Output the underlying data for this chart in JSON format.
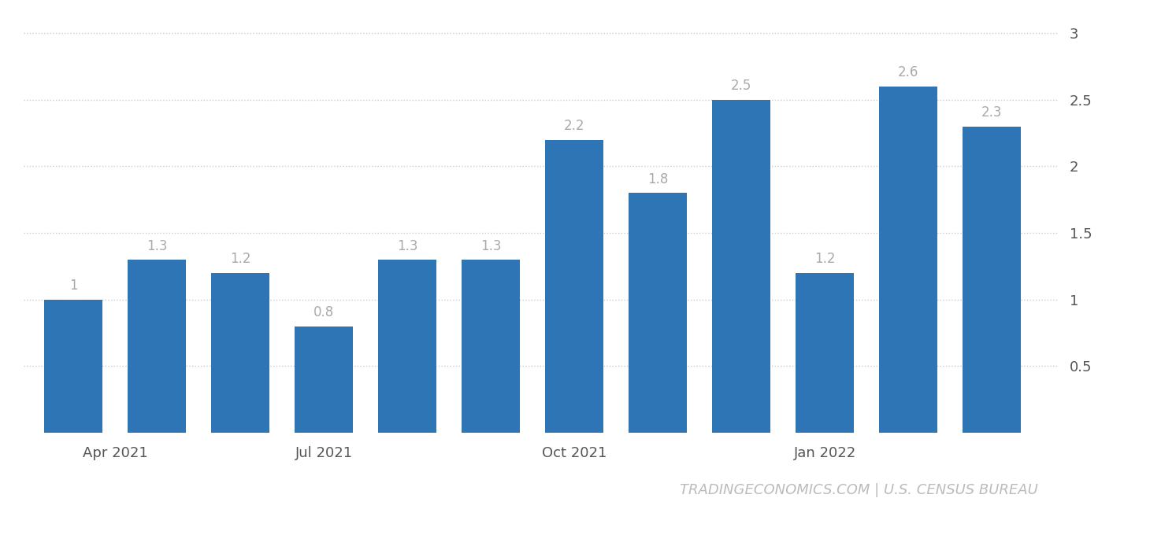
{
  "values": [
    1.0,
    1.3,
    1.2,
    0.8,
    1.3,
    1.3,
    2.2,
    1.8,
    2.5,
    1.2,
    2.6,
    2.3
  ],
  "bar_labels": [
    "1",
    "1.3",
    "1.2",
    "0.8",
    "1.3",
    "1.3",
    "2.2",
    "1.8",
    "2.5",
    "1.2",
    "2.6",
    "2.3"
  ],
  "x_positions": [
    0,
    1,
    2,
    3,
    4,
    5,
    6,
    7,
    8,
    9,
    10,
    11
  ],
  "bar_color": "#2E75B6",
  "ylim_bottom": 0,
  "ylim_top": 3.12,
  "yticks": [
    0.5,
    1.0,
    1.5,
    2.0,
    2.5,
    3.0
  ],
  "ytick_labels": [
    "0.5",
    "1",
    "1.5",
    "2",
    "2.5",
    "3"
  ],
  "xtick_positions": [
    0.5,
    3,
    6,
    9
  ],
  "xtick_labels": [
    "Apr 2021",
    "Jul 2021",
    "Oct 2021",
    "Jan 2022"
  ],
  "label_color": "#aaaaaa",
  "label_fontsize": 12,
  "watermark": "TRADINGECONOMICS.COM | U.S. CENSUS BUREAU",
  "watermark_color": "#bbbbbb",
  "watermark_fontsize": 13,
  "background_color": "#ffffff",
  "grid_color": "#cccccc",
  "bar_width": 0.7,
  "xlim_left": -0.6,
  "xlim_right": 11.8
}
